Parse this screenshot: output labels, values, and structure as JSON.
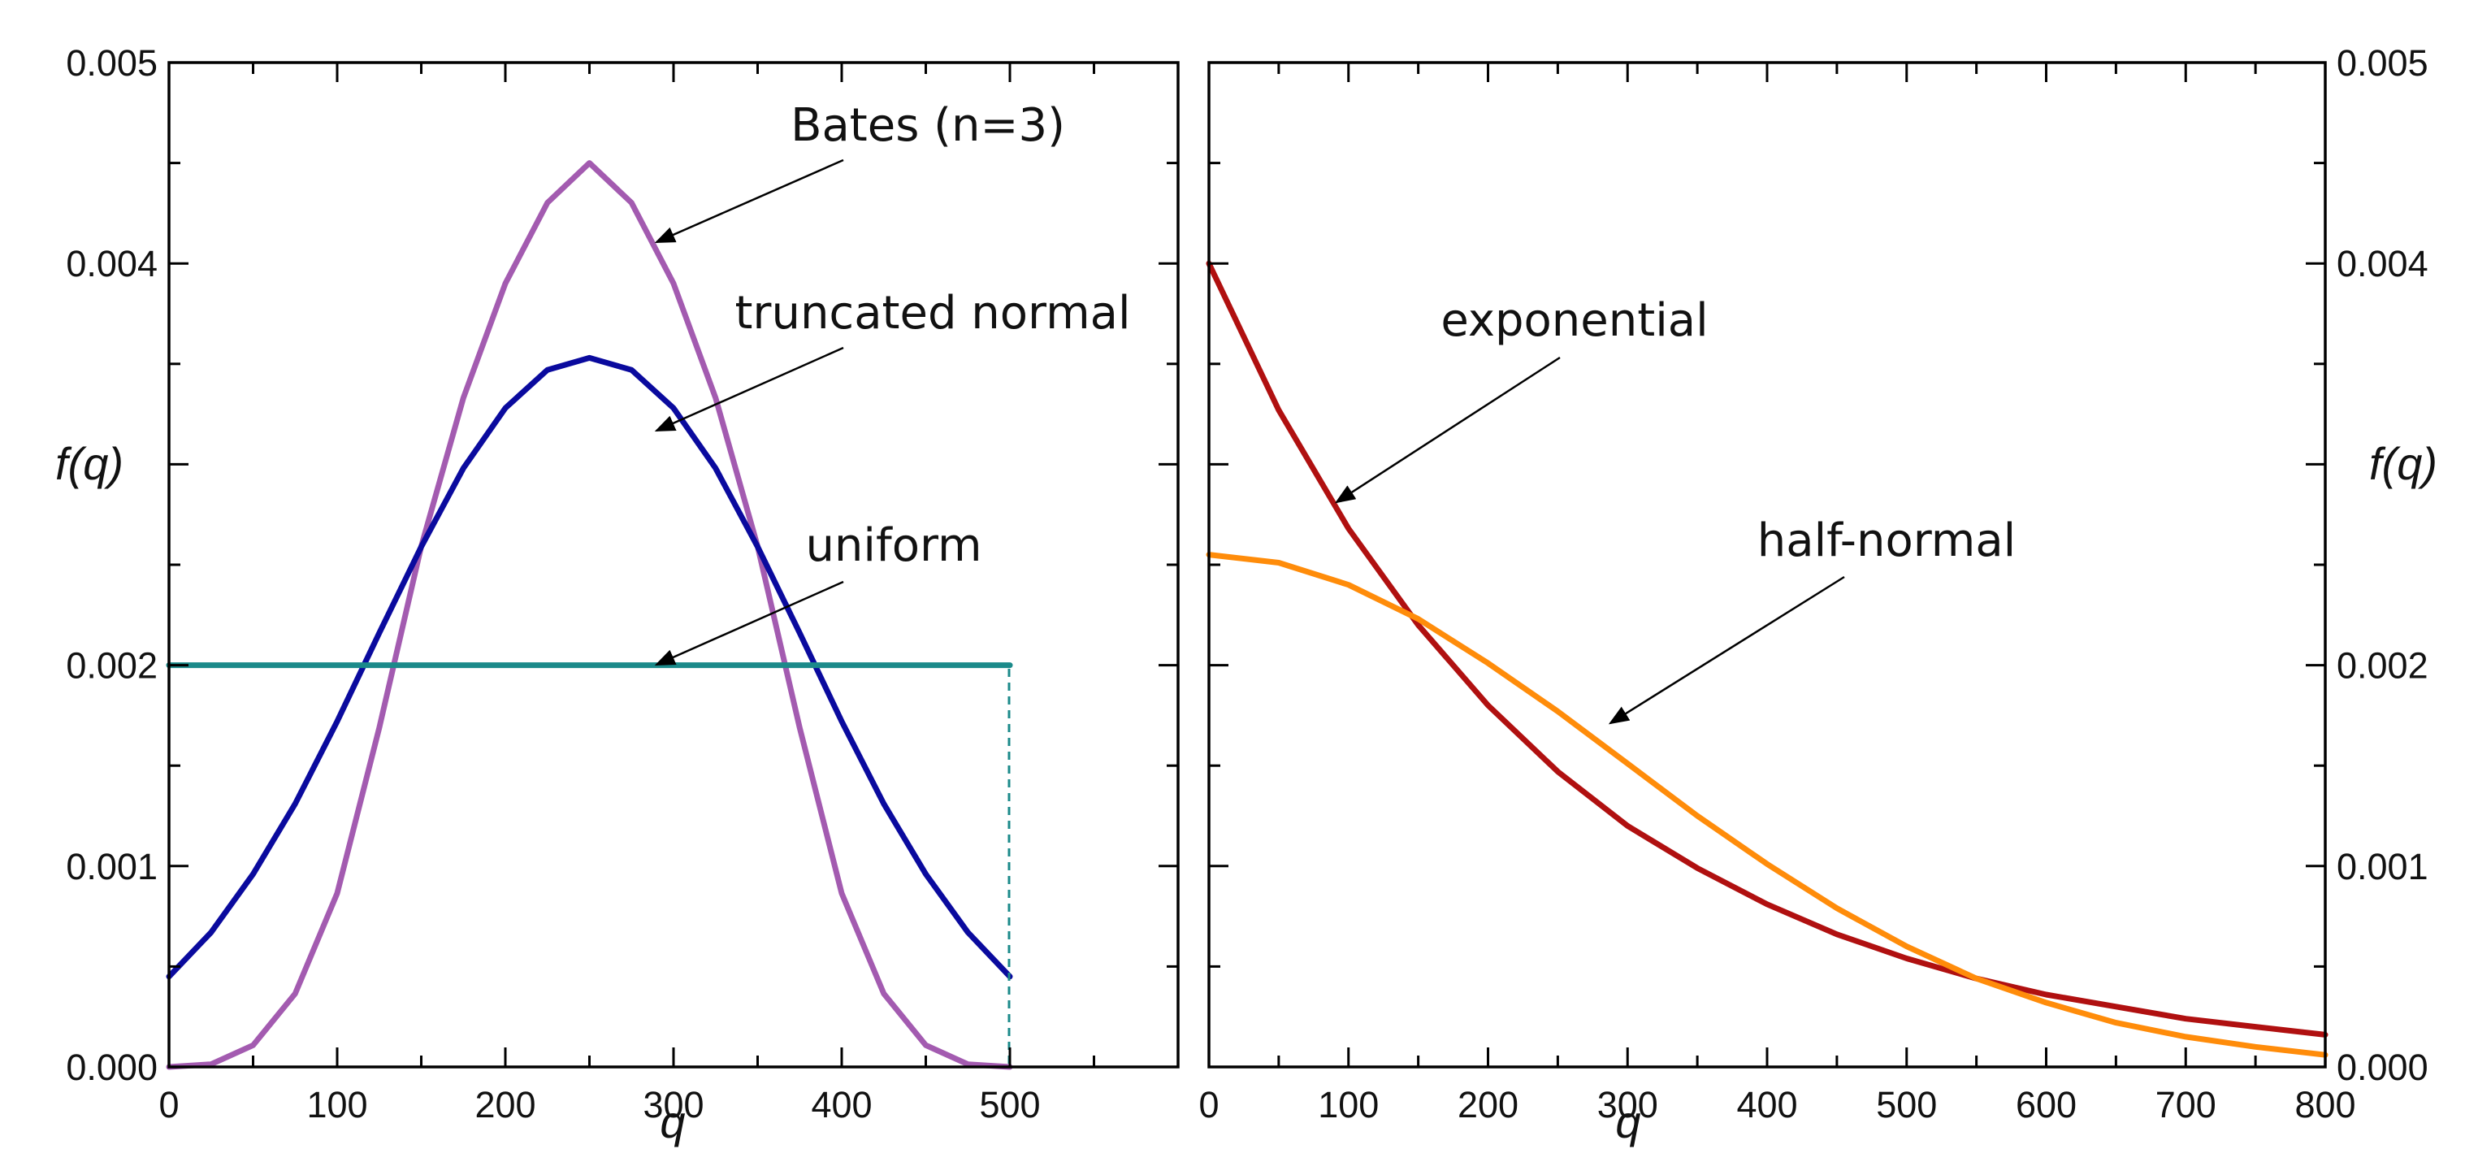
{
  "chart_data": [
    {
      "type": "line",
      "xlabel": "q",
      "ylabel": "f(q)",
      "xlim": [
        0,
        600
      ],
      "ylim": [
        0,
        0.005
      ],
      "x_ticks": [
        "0",
        "100",
        "200",
        "300",
        "400",
        "500"
      ],
      "y_ticks": [
        "0.000",
        "0.001",
        "0.002",
        "0.004",
        "0.005"
      ],
      "y_axis_side": "left",
      "grid": false,
      "series": [
        {
          "name": "Bates (n=3)",
          "color": "#a35bb0",
          "x": [
            0,
            25,
            50,
            75,
            100,
            125,
            150,
            175,
            200,
            225,
            250,
            275,
            300,
            325,
            350,
            375,
            400,
            425,
            450,
            475,
            500
          ],
          "y": [
            0,
            1.35e-05,
            0.000108,
            0.000365,
            0.000864,
            0.001688,
            0.002592,
            0.00333,
            0.0039,
            0.004302,
            0.0045,
            0.004302,
            0.0039,
            0.00333,
            0.002592,
            0.001688,
            0.000864,
            0.000365,
            0.000108,
            1.35e-05,
            0
          ]
        },
        {
          "name": "truncated normal",
          "color": "#0a0a9e",
          "x": [
            0,
            25,
            50,
            75,
            100,
            125,
            150,
            175,
            200,
            225,
            250,
            275,
            300,
            325,
            350,
            375,
            400,
            425,
            450,
            475,
            500
          ],
          "y": [
            0.00045,
            0.00067,
            0.00096,
            0.00131,
            0.00172,
            0.00216,
            0.00259,
            0.00298,
            0.00328,
            0.00347,
            0.00353,
            0.00347,
            0.00328,
            0.00298,
            0.00259,
            0.00216,
            0.00172,
            0.00131,
            0.00096,
            0.00067,
            0.00045
          ]
        },
        {
          "name": "uniform",
          "color": "#1b8a8a",
          "x": [
            0,
            500
          ],
          "y": [
            0.002,
            0.002
          ]
        }
      ],
      "annotations": [
        {
          "text": "Bates (n=3)",
          "target_series": "Bates (n=3)",
          "target_x": 290
        },
        {
          "text": "truncated normal",
          "target_series": "truncated normal",
          "target_x": 290
        },
        {
          "text": "uniform",
          "target_series": "uniform",
          "target_x": 290
        }
      ]
    },
    {
      "type": "line",
      "xlabel": "q",
      "ylabel": "f(q)",
      "xlim": [
        0,
        800
      ],
      "ylim": [
        0,
        0.005
      ],
      "x_ticks": [
        "0",
        "100",
        "200",
        "300",
        "400",
        "500",
        "600",
        "700",
        "800"
      ],
      "y_ticks": [
        "0.000",
        "0.001",
        "0.002",
        "0.004",
        "0.005"
      ],
      "y_axis_side": "right",
      "grid": false,
      "series": [
        {
          "name": "exponential",
          "color": "#b01010",
          "x": [
            0,
            50,
            100,
            150,
            200,
            250,
            300,
            350,
            400,
            450,
            500,
            550,
            600,
            650,
            700,
            750,
            800
          ],
          "y": [
            0.004,
            0.00327,
            0.00268,
            0.0022,
            0.0018,
            0.00147,
            0.0012,
            0.00099,
            0.00081,
            0.00066,
            0.00054,
            0.00044,
            0.00036,
            0.0003,
            0.00024,
            0.0002,
            0.00016
          ]
        },
        {
          "name": "half-normal",
          "color": "#ff8c0a",
          "x": [
            0,
            50,
            100,
            150,
            200,
            250,
            300,
            350,
            400,
            450,
            500,
            550,
            600,
            650,
            700,
            750,
            800
          ],
          "y": [
            0.00255,
            0.00251,
            0.0024,
            0.00223,
            0.00201,
            0.00177,
            0.00151,
            0.00125,
            0.00101,
            0.00079,
            0.0006,
            0.00044,
            0.00032,
            0.00022,
            0.00015,
            0.0001,
            6e-05
          ]
        }
      ],
      "annotations": [
        {
          "text": "exponential",
          "target_series": "exponential",
          "target_x": 90
        },
        {
          "text": "half-normal",
          "target_series": "half-normal",
          "target_x": 290
        }
      ]
    }
  ]
}
